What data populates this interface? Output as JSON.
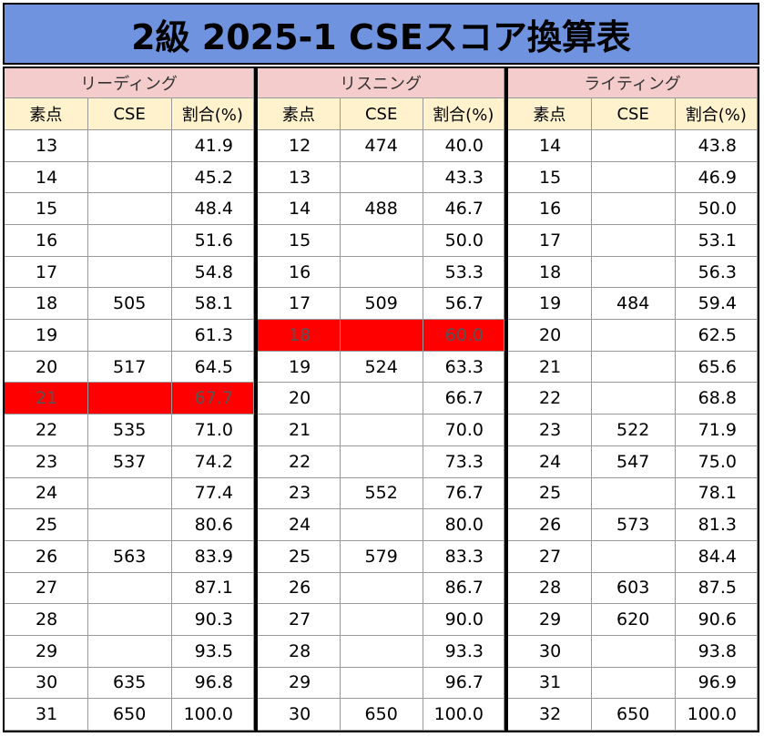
{
  "title": "2級 2025-1 CSEスコア換算表",
  "highlight_color": "#ff0000",
  "sections": [
    {
      "name": "リーディング",
      "columns": [
        "素点",
        "CSE",
        "割合(%)"
      ],
      "highlight_rows": [
        8
      ],
      "rows": [
        [
          "13",
          null,
          "41.9"
        ],
        [
          "14",
          null,
          "45.2"
        ],
        [
          "15",
          null,
          "48.4"
        ],
        [
          "16",
          null,
          "51.6"
        ],
        [
          "17",
          null,
          "54.8"
        ],
        [
          "18",
          "505",
          "58.1"
        ],
        [
          "19",
          null,
          "61.3"
        ],
        [
          "20",
          "517",
          "64.5"
        ],
        [
          "21",
          null,
          "67.7"
        ],
        [
          "22",
          "535",
          "71.0"
        ],
        [
          "23",
          "537",
          "74.2"
        ],
        [
          "24",
          null,
          "77.4"
        ],
        [
          "25",
          null,
          "80.6"
        ],
        [
          "26",
          "563",
          "83.9"
        ],
        [
          "27",
          null,
          "87.1"
        ],
        [
          "28",
          null,
          "90.3"
        ],
        [
          "29",
          null,
          "93.5"
        ],
        [
          "30",
          "635",
          "96.8"
        ],
        [
          "31",
          "650",
          "100.0"
        ]
      ]
    },
    {
      "name": "リスニング",
      "columns": [
        "素点",
        "CSE",
        "割合(%)"
      ],
      "highlight_rows": [
        6
      ],
      "rows": [
        [
          "12",
          "474",
          "40.0"
        ],
        [
          "13",
          null,
          "43.3"
        ],
        [
          "14",
          "488",
          "46.7"
        ],
        [
          "15",
          null,
          "50.0"
        ],
        [
          "16",
          null,
          "53.3"
        ],
        [
          "17",
          "509",
          "56.7"
        ],
        [
          "18",
          null,
          "60.0"
        ],
        [
          "19",
          "524",
          "63.3"
        ],
        [
          "20",
          null,
          "66.7"
        ],
        [
          "21",
          null,
          "70.0"
        ],
        [
          "22",
          null,
          "73.3"
        ],
        [
          "23",
          "552",
          "76.7"
        ],
        [
          "24",
          null,
          "80.0"
        ],
        [
          "25",
          "579",
          "83.3"
        ],
        [
          "26",
          null,
          "86.7"
        ],
        [
          "27",
          null,
          "90.0"
        ],
        [
          "28",
          null,
          "93.3"
        ],
        [
          "29",
          null,
          "96.7"
        ],
        [
          "30",
          "650",
          "100.0"
        ]
      ]
    },
    {
      "name": "ライティング",
      "columns": [
        "素点",
        "CSE",
        "割合(%)"
      ],
      "highlight_rows": [],
      "rows": [
        [
          "14",
          null,
          "43.8"
        ],
        [
          "15",
          null,
          "46.9"
        ],
        [
          "16",
          null,
          "50.0"
        ],
        [
          "17",
          null,
          "53.1"
        ],
        [
          "18",
          null,
          "56.3"
        ],
        [
          "19",
          "484",
          "59.4"
        ],
        [
          "20",
          null,
          "62.5"
        ],
        [
          "21",
          null,
          "65.6"
        ],
        [
          "22",
          null,
          "68.8"
        ],
        [
          "23",
          "522",
          "71.9"
        ],
        [
          "24",
          "547",
          "75.0"
        ],
        [
          "25",
          null,
          "78.1"
        ],
        [
          "26",
          "573",
          "81.3"
        ],
        [
          "27",
          null,
          "84.4"
        ],
        [
          "28",
          "603",
          "87.5"
        ],
        [
          "29",
          "620",
          "90.6"
        ],
        [
          "30",
          null,
          "93.8"
        ],
        [
          "31",
          null,
          "96.9"
        ],
        [
          "32",
          "650",
          "100.0"
        ]
      ]
    }
  ]
}
